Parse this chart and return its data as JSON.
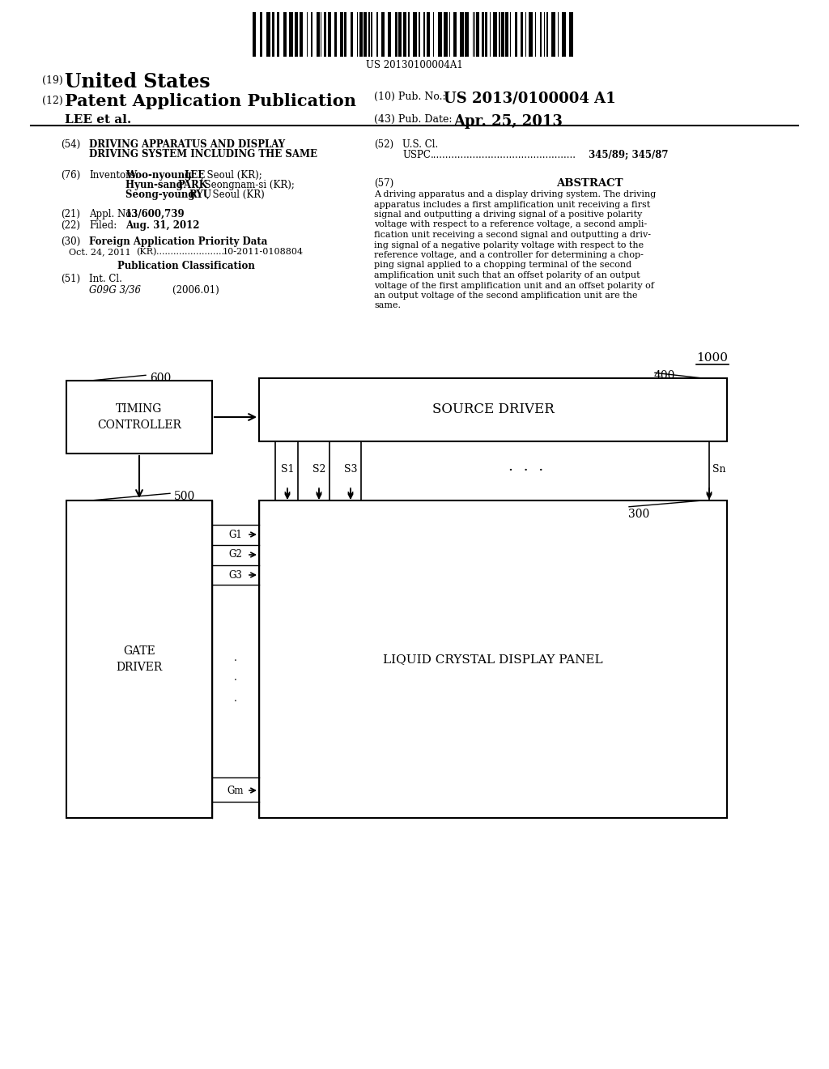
{
  "background_color": "#ffffff",
  "barcode_text": "US 20130100004A1",
  "diagram_label": "1000",
  "timing_controller_label": "TIMING\nCONTROLLER",
  "timing_controller_ref": "600",
  "source_driver_label": "SOURCE DRIVER",
  "source_driver_ref": "400",
  "gate_driver_label": "GATE\nDRIVER",
  "gate_driver_ref": "500",
  "lcd_panel_label": "LIQUID CRYSTAL DISPLAY PANEL",
  "lcd_panel_ref": "300",
  "source_lines": [
    "S1",
    "S2",
    "S3",
    "Sn"
  ],
  "gate_lines": [
    "G1",
    "G2",
    "G3",
    "Gm"
  ],
  "abstract_lines": [
    "A driving apparatus and a display driving system. The driving",
    "apparatus includes a first amplification unit receiving a first",
    "signal and outputting a driving signal of a positive polarity",
    "voltage with respect to a reference voltage, a second ampli-",
    "fication unit receiving a second signal and outputting a driv-",
    "ing signal of a negative polarity voltage with respect to the",
    "reference voltage, and a controller for determining a chop-",
    "ping signal applied to a chopping terminal of the second",
    "amplification unit such that an offset polarity of an output",
    "voltage of the first amplification unit and an offset polarity of",
    "an output voltage of the second amplification unit are the",
    "same."
  ]
}
